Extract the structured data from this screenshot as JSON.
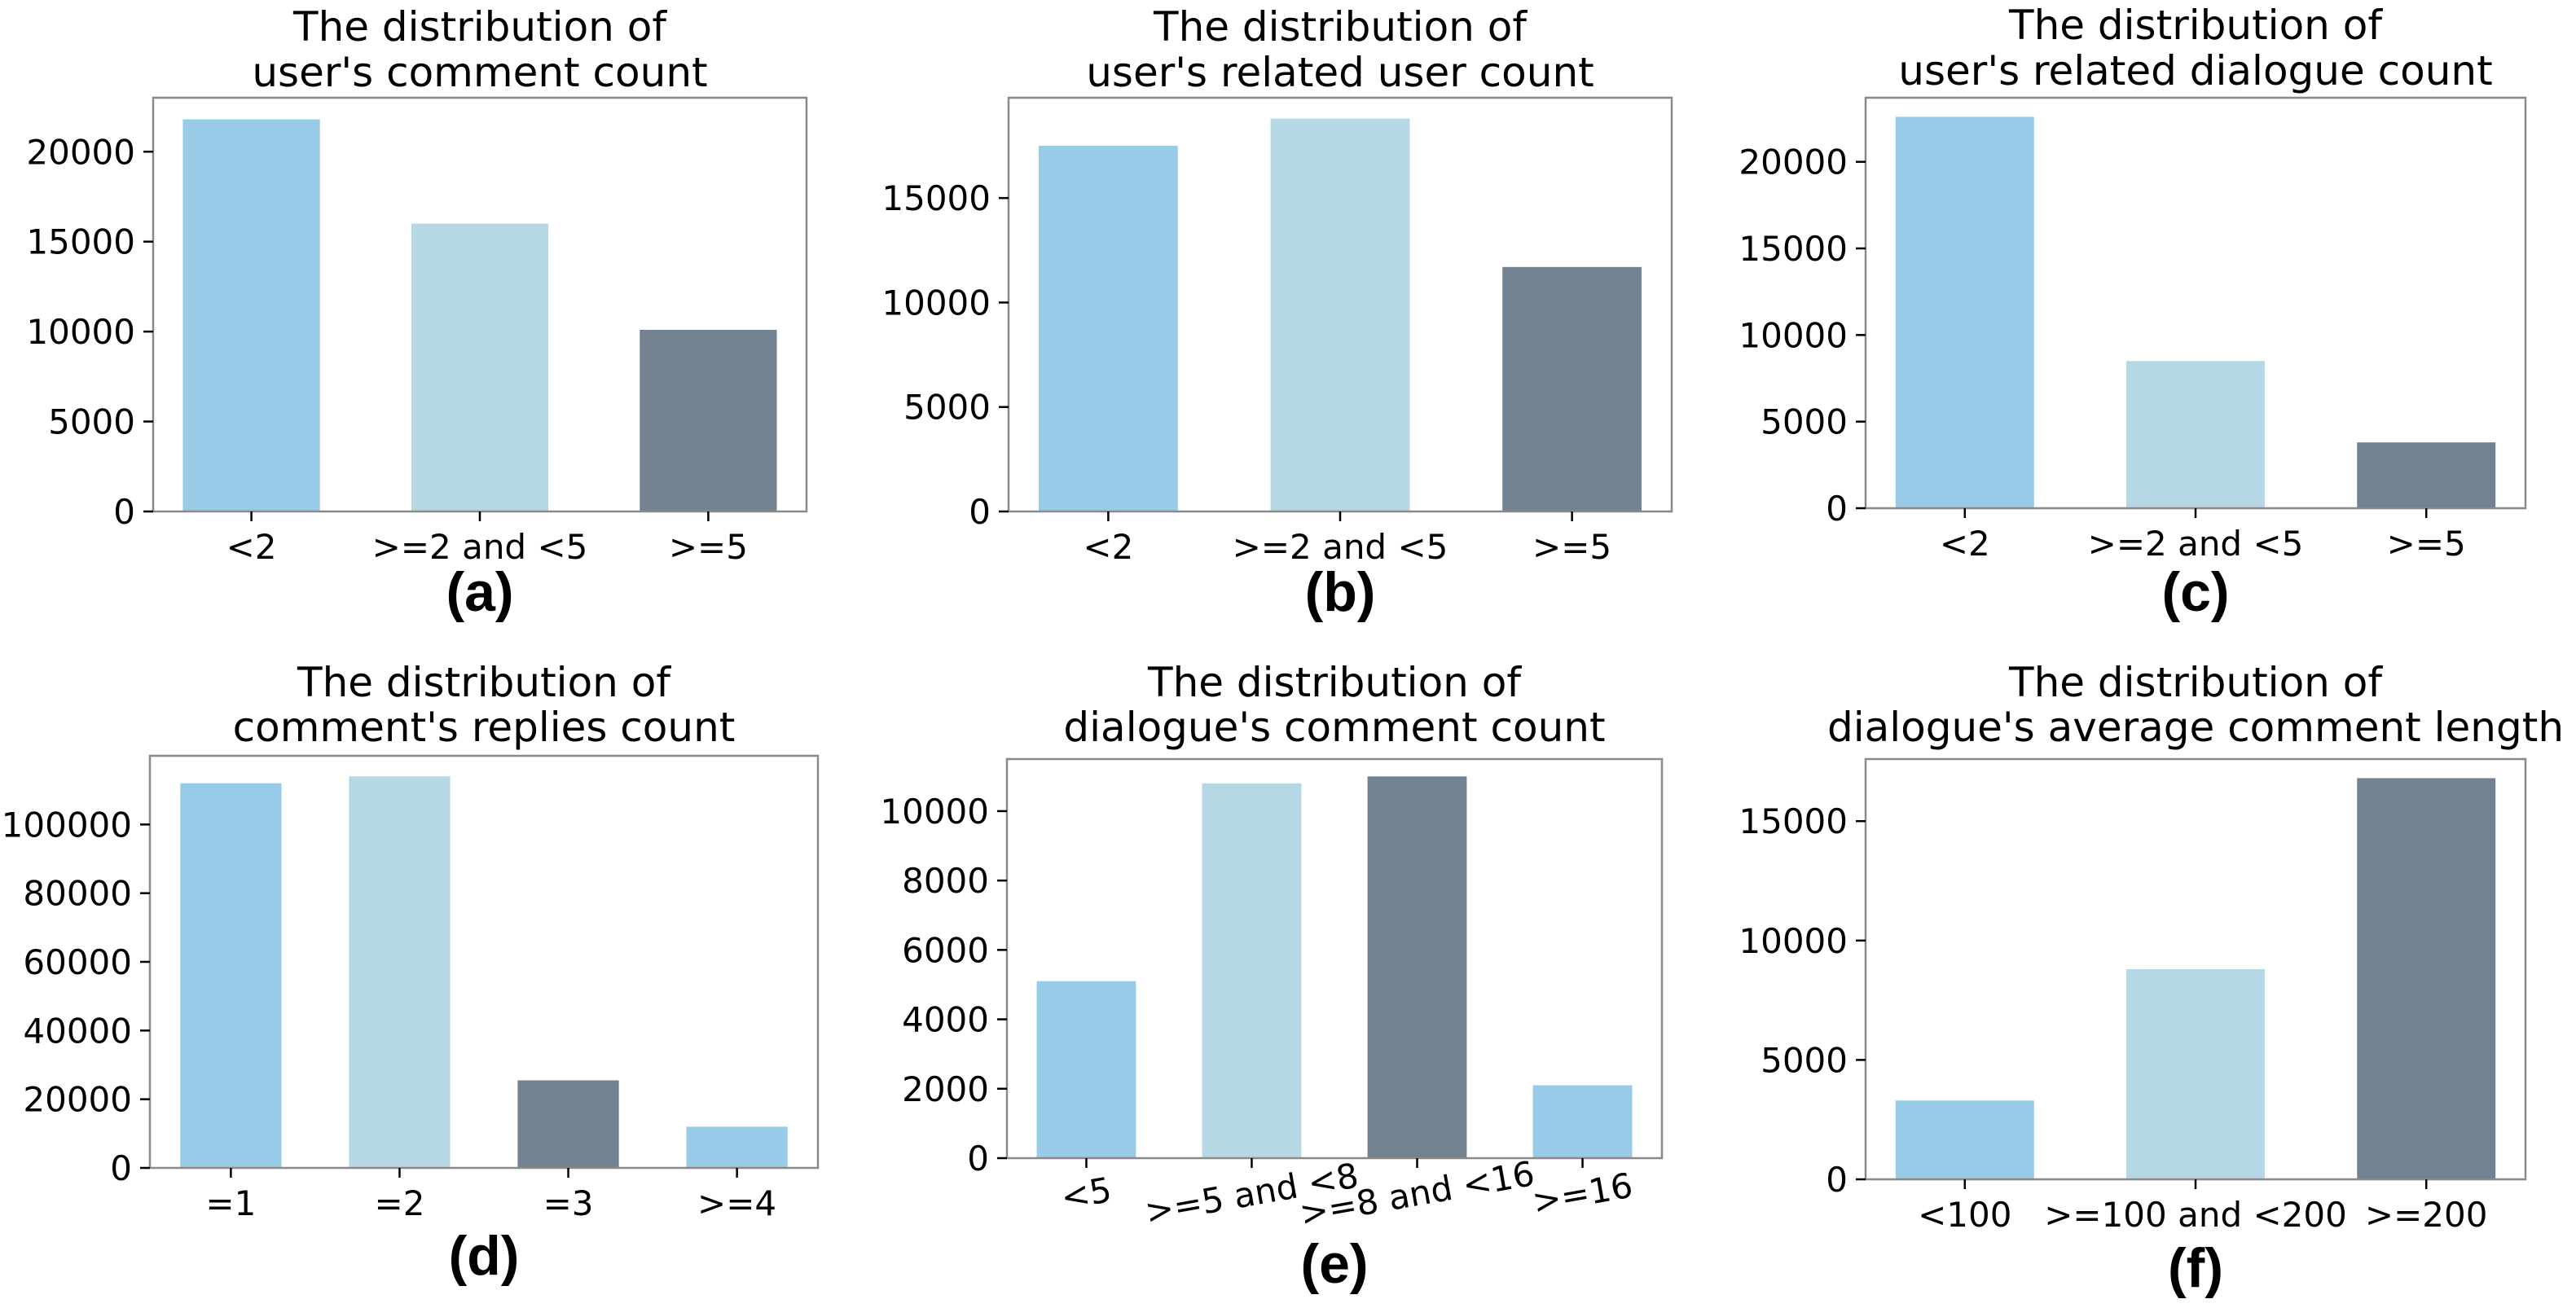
{
  "palette": {
    "light_blue": "#98cbe7",
    "pale_blue": "#b6d8e4",
    "slate": "#738290"
  },
  "chart_data": [
    {
      "type": "bar",
      "panel_label": "(a)",
      "title_lines": [
        "The distribution of",
        "user's comment count"
      ],
      "categories": [
        "<2",
        ">=2 and <5",
        ">=5"
      ],
      "values": [
        21800,
        16000,
        10100
      ],
      "ylim": [
        0,
        23000
      ],
      "yticks": [
        0,
        5000,
        10000,
        15000,
        20000
      ],
      "ytick_labels": [
        "0",
        "5000",
        "10000",
        "15000",
        "20000"
      ],
      "xlabel": "",
      "ylabel": "",
      "colors": [
        "#98cbe7",
        "#b6d8e4",
        "#738290"
      ],
      "grid": false
    },
    {
      "type": "bar",
      "panel_label": "(b)",
      "title_lines": [
        "The distribution of",
        "user's related user count"
      ],
      "categories": [
        "<2",
        ">=2 and <5",
        ">=5"
      ],
      "values": [
        17500,
        18800,
        11700
      ],
      "ylim": [
        0,
        19800
      ],
      "yticks": [
        0,
        5000,
        10000,
        15000
      ],
      "ytick_labels": [
        "0",
        "5000",
        "10000",
        "15000"
      ],
      "xlabel": "",
      "ylabel": "",
      "colors": [
        "#98cbe7",
        "#b6d8e4",
        "#738290"
      ],
      "grid": false
    },
    {
      "type": "bar",
      "panel_label": "(c)",
      "title_lines": [
        "The distribution of",
        "user's related dialogue count"
      ],
      "categories": [
        "<2",
        ">=2 and <5",
        ">=5"
      ],
      "values": [
        22600,
        8500,
        3800
      ],
      "ylim": [
        0,
        23700
      ],
      "yticks": [
        0,
        5000,
        10000,
        15000,
        20000
      ],
      "ytick_labels": [
        "0",
        "5000",
        "10000",
        "15000",
        "20000"
      ],
      "xlabel": "",
      "ylabel": "",
      "colors": [
        "#98cbe7",
        "#b6d8e4",
        "#738290"
      ],
      "grid": false
    },
    {
      "type": "bar",
      "panel_label": "(d)",
      "title_lines": [
        "The distribution of",
        "comment's replies count"
      ],
      "categories": [
        "=1",
        "=2",
        "=3",
        ">=4"
      ],
      "values": [
        112000,
        114000,
        25500,
        12000
      ],
      "ylim": [
        0,
        120000
      ],
      "yticks": [
        0,
        20000,
        40000,
        60000,
        80000,
        100000
      ],
      "ytick_labels": [
        "0",
        "20000",
        "40000",
        "60000",
        "80000",
        "100000"
      ],
      "xlabel": "",
      "ylabel": "",
      "colors": [
        "#98cbe7",
        "#b6d8e4",
        "#738290",
        "#98cbe7"
      ],
      "grid": false
    },
    {
      "type": "bar",
      "panel_label": "(e)",
      "title_lines": [
        "The distribution of",
        "dialogue's comment count"
      ],
      "categories": [
        "<5",
        ">=5 and <8",
        ">=8 and <16",
        ">=16"
      ],
      "values": [
        5100,
        10800,
        11000,
        2100
      ],
      "ylim": [
        0,
        11500
      ],
      "yticks": [
        0,
        2000,
        4000,
        6000,
        8000,
        10000
      ],
      "ytick_labels": [
        "0",
        "2000",
        "4000",
        "6000",
        "8000",
        "10000"
      ],
      "xlabel": "",
      "ylabel": "",
      "colors": [
        "#98cbe7",
        "#b6d8e4",
        "#738290",
        "#98cbe7"
      ],
      "xtick_rotation": 10,
      "grid": false
    },
    {
      "type": "bar",
      "panel_label": "(f)",
      "title_lines": [
        "The distribution of",
        "dialogue's average comment length"
      ],
      "categories": [
        "<100",
        ">=100 and <200",
        ">=200"
      ],
      "values": [
        3300,
        8800,
        16800
      ],
      "ylim": [
        0,
        17600
      ],
      "yticks": [
        0,
        5000,
        10000,
        15000
      ],
      "ytick_labels": [
        "0",
        "5000",
        "10000",
        "15000"
      ],
      "xlabel": "",
      "ylabel": "",
      "colors": [
        "#98cbe7",
        "#b6d8e4",
        "#738290"
      ],
      "grid": false
    }
  ]
}
